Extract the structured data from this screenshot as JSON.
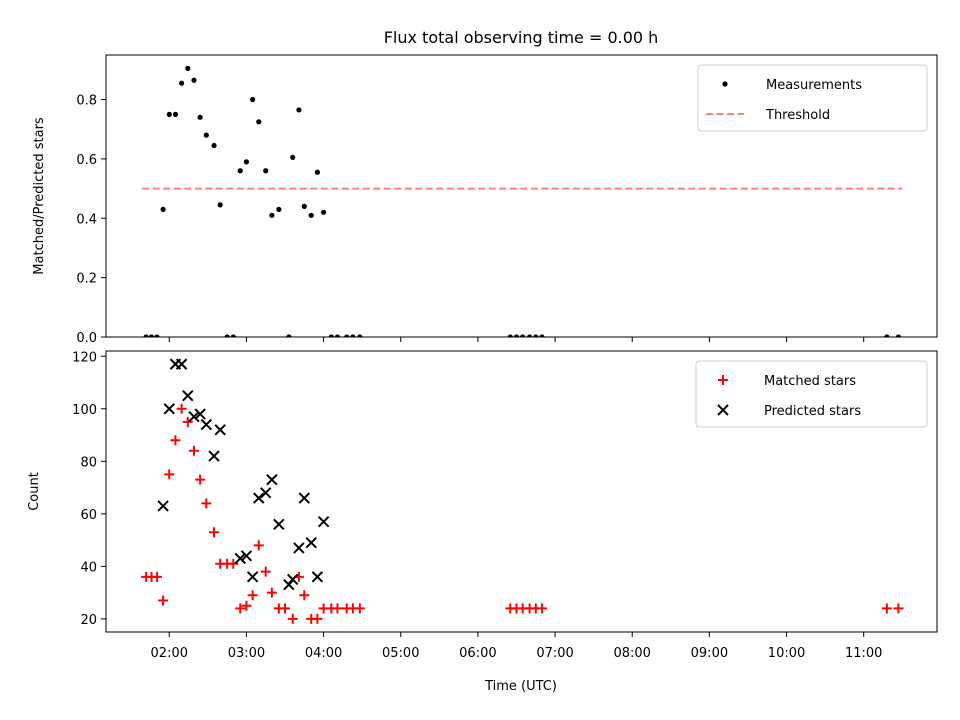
{
  "chart_data": {
    "type": "scatter",
    "title": "Flux total observing time = 0.00 h",
    "xlabel": "Time (UTC)",
    "x_unit": "hours since 00:00 UTC",
    "xlim": [
      1.18,
      11.95
    ],
    "x_ticks": [
      2,
      3,
      4,
      5,
      6,
      7,
      8,
      9,
      10,
      11
    ],
    "x_tick_labels": [
      "02:00",
      "03:00",
      "04:00",
      "05:00",
      "06:00",
      "07:00",
      "08:00",
      "09:00",
      "10:00",
      "11:00"
    ],
    "panels": [
      {
        "ylabel": "Matched/Predicted stars",
        "ylim": [
          0,
          0.95
        ],
        "y_ticks": [
          0,
          0.2,
          0.4,
          0.6,
          0.8
        ],
        "y_tick_labels": [
          "0.0",
          "0.2",
          "0.4",
          "0.6",
          "0.8"
        ],
        "legend": {
          "position": "top-right",
          "entries": [
            "Measurements",
            "Threshold"
          ]
        },
        "series": [
          {
            "name": "Measurements",
            "marker": "dot",
            "color": "#000000",
            "x": [
              1.7,
              1.77,
              1.84,
              1.92,
              2.0,
              2.08,
              2.16,
              2.24,
              2.32,
              2.4,
              2.48,
              2.58,
              2.66,
              2.75,
              2.83,
              2.92,
              3.0,
              3.08,
              3.16,
              3.25,
              3.33,
              3.42,
              3.55,
              3.6,
              3.68,
              3.75,
              3.84,
              3.92,
              4.0,
              4.1,
              4.18,
              4.3,
              4.38,
              4.47,
              6.42,
              6.5,
              6.58,
              6.67,
              6.75,
              6.83,
              11.3,
              11.45
            ],
            "y": [
              0,
              0,
              0,
              0.43,
              0.75,
              0.75,
              0.855,
              0.905,
              0.865,
              0.74,
              0.68,
              0.645,
              0.445,
              0,
              0,
              0.56,
              0.59,
              0.8,
              0.725,
              0.56,
              0.41,
              0.43,
              0,
              0.605,
              0.765,
              0.44,
              0.41,
              0.555,
              0.42,
              0,
              0,
              0,
              0,
              0,
              0,
              0,
              0,
              0,
              0,
              0,
              0,
              0
            ]
          },
          {
            "name": "Threshold",
            "marker": "dashed-line",
            "color": "#ff7f7f",
            "x": [
              1.65,
              11.5
            ],
            "y": [
              0.5,
              0.5
            ]
          }
        ]
      },
      {
        "ylabel": "Count",
        "ylim": [
          15,
          122
        ],
        "y_ticks": [
          20,
          40,
          60,
          80,
          100,
          120
        ],
        "y_tick_labels": [
          "20",
          "40",
          "60",
          "80",
          "100",
          "120"
        ],
        "legend": {
          "position": "top-right",
          "entries": [
            "Matched stars",
            "Predicted stars"
          ]
        },
        "series": [
          {
            "name": "Matched stars",
            "marker": "plus",
            "color": "#ff0000",
            "x": [
              1.7,
              1.77,
              1.84,
              1.92,
              2.0,
              2.08,
              2.16,
              2.24,
              2.32,
              2.4,
              2.48,
              2.58,
              2.66,
              2.75,
              2.83,
              2.92,
              3.0,
              3.08,
              3.16,
              3.25,
              3.33,
              3.42,
              3.5,
              3.6,
              3.68,
              3.75,
              3.84,
              3.92,
              4.0,
              4.1,
              4.18,
              4.3,
              4.38,
              4.47,
              6.42,
              6.5,
              6.58,
              6.67,
              6.75,
              6.83,
              11.3,
              11.45
            ],
            "y": [
              36,
              36,
              36,
              27,
              75,
              88,
              100,
              95,
              84,
              73,
              64,
              53,
              41,
              41,
              41,
              24,
              25,
              29,
              48,
              38,
              30,
              24,
              24,
              20,
              36,
              29,
              20,
              20,
              24,
              24,
              24,
              24,
              24,
              24,
              24,
              24,
              24,
              24,
              24,
              24,
              24,
              24
            ]
          },
          {
            "name": "Predicted stars",
            "marker": "x",
            "color": "#000000",
            "x": [
              1.92,
              2.0,
              2.08,
              2.16,
              2.24,
              2.32,
              2.4,
              2.48,
              2.58,
              2.66,
              2.92,
              3.0,
              3.08,
              3.16,
              3.25,
              3.33,
              3.42,
              3.55,
              3.6,
              3.68,
              3.75,
              3.84,
              3.92,
              4.0
            ],
            "y": [
              63,
              100,
              117,
              117,
              105,
              97,
              98,
              94,
              82,
              92,
              43,
              44,
              36,
              66,
              68,
              73,
              56,
              33,
              35,
              47,
              66,
              49,
              36,
              57
            ]
          }
        ]
      }
    ]
  }
}
